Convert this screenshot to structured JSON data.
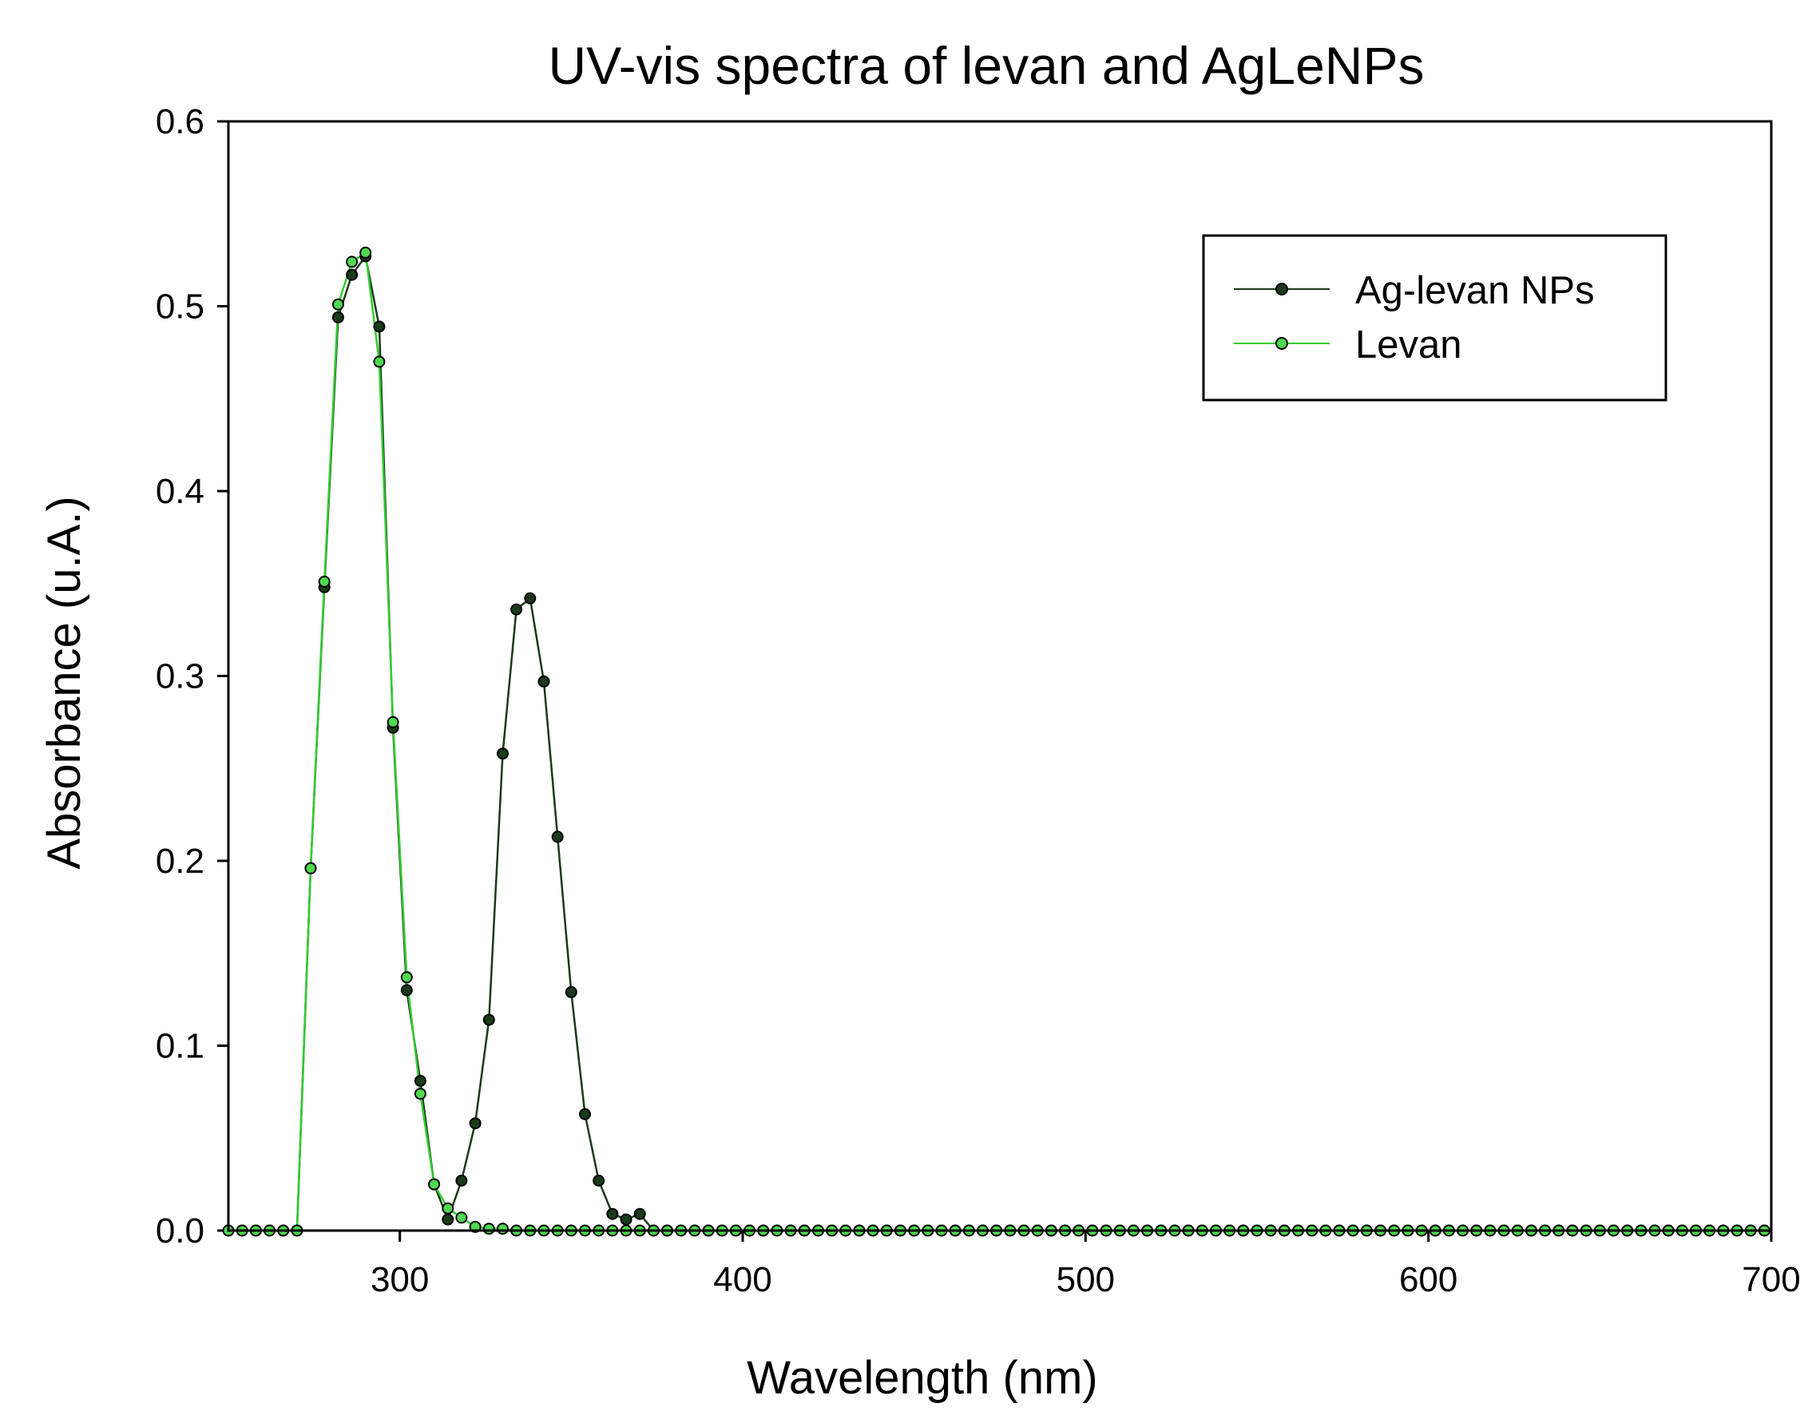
{
  "chart_data": {
    "type": "line",
    "title": "UV-vis spectra of levan and AgLeNPs",
    "xlabel": "Wavelength (nm)",
    "ylabel": "Absorbance (u.A.)",
    "xlim": [
      250,
      700
    ],
    "ylim": [
      0,
      0.6
    ],
    "xticks": [
      300,
      400,
      500,
      600,
      700
    ],
    "xtick_labels": [
      "300",
      "400",
      "500",
      "600",
      "700"
    ],
    "yticks": [
      0.0,
      0.1,
      0.2,
      0.3,
      0.4,
      0.5,
      0.6
    ],
    "ytick_labels": [
      "0.0",
      "0.1",
      "0.2",
      "0.3",
      "0.4",
      "0.5",
      "0.6"
    ],
    "grid": false,
    "legend_position": "top-right",
    "series": [
      {
        "name": "Ag-levan NPs",
        "color": "#1a3a1a",
        "marker_fill": "#1a3a1a",
        "points": [
          [
            250,
            0
          ],
          [
            254,
            0
          ],
          [
            258,
            0
          ],
          [
            262,
            0
          ],
          [
            266,
            0
          ],
          [
            270,
            0
          ],
          [
            274,
            0.196
          ],
          [
            278,
            0.348
          ],
          [
            282,
            0.494
          ],
          [
            286,
            0.517
          ],
          [
            290,
            0.527
          ],
          [
            294,
            0.489
          ],
          [
            298,
            0.272
          ],
          [
            302,
            0.13
          ],
          [
            306,
            0.081
          ],
          [
            310,
            0.025
          ],
          [
            314,
            0.006
          ],
          [
            318,
            0.027
          ],
          [
            322,
            0.058
          ],
          [
            326,
            0.114
          ],
          [
            330,
            0.258
          ],
          [
            334,
            0.336
          ],
          [
            338,
            0.342
          ],
          [
            342,
            0.297
          ],
          [
            346,
            0.213
          ],
          [
            350,
            0.129
          ],
          [
            354,
            0.063
          ],
          [
            358,
            0.027
          ],
          [
            362,
            0.009
          ],
          [
            366,
            0.006
          ],
          [
            370,
            0.009
          ],
          [
            374,
            0
          ],
          [
            378,
            0
          ],
          [
            382,
            0
          ],
          [
            386,
            0
          ],
          [
            390,
            0
          ],
          [
            394,
            0
          ],
          [
            398,
            0
          ],
          [
            402,
            0
          ],
          [
            406,
            0
          ],
          [
            410,
            0
          ],
          [
            414,
            0
          ],
          [
            418,
            0
          ],
          [
            422,
            0
          ],
          [
            426,
            0
          ],
          [
            430,
            0
          ],
          [
            434,
            0
          ],
          [
            438,
            0
          ],
          [
            442,
            0
          ],
          [
            446,
            0
          ],
          [
            450,
            0
          ],
          [
            454,
            0
          ],
          [
            458,
            0
          ],
          [
            462,
            0
          ],
          [
            466,
            0
          ],
          [
            470,
            0
          ],
          [
            474,
            0
          ],
          [
            478,
            0
          ],
          [
            482,
            0
          ],
          [
            486,
            0
          ],
          [
            490,
            0
          ],
          [
            494,
            0
          ],
          [
            498,
            0
          ],
          [
            502,
            0
          ],
          [
            506,
            0
          ],
          [
            510,
            0
          ],
          [
            514,
            0
          ],
          [
            518,
            0
          ],
          [
            522,
            0
          ],
          [
            526,
            0
          ],
          [
            530,
            0
          ],
          [
            534,
            0
          ],
          [
            538,
            0
          ],
          [
            542,
            0
          ],
          [
            546,
            0
          ],
          [
            550,
            0
          ],
          [
            554,
            0
          ],
          [
            558,
            0
          ],
          [
            562,
            0
          ],
          [
            566,
            0
          ],
          [
            570,
            0
          ],
          [
            574,
            0
          ],
          [
            578,
            0
          ],
          [
            582,
            0
          ],
          [
            586,
            0
          ],
          [
            590,
            0
          ],
          [
            594,
            0
          ],
          [
            598,
            0
          ],
          [
            602,
            0
          ],
          [
            606,
            0
          ],
          [
            610,
            0
          ],
          [
            614,
            0
          ],
          [
            618,
            0
          ],
          [
            622,
            0
          ],
          [
            626,
            0
          ],
          [
            630,
            0
          ],
          [
            634,
            0
          ],
          [
            638,
            0
          ],
          [
            642,
            0
          ],
          [
            646,
            0
          ],
          [
            650,
            0
          ],
          [
            654,
            0
          ],
          [
            658,
            0
          ],
          [
            662,
            0
          ],
          [
            666,
            0
          ],
          [
            670,
            0
          ],
          [
            674,
            0
          ],
          [
            678,
            0
          ],
          [
            682,
            0
          ],
          [
            686,
            0
          ],
          [
            690,
            0
          ],
          [
            694,
            0
          ],
          [
            698,
            0
          ]
        ]
      },
      {
        "name": "Levan",
        "color": "#33cc33",
        "marker_fill": "#4fd94f",
        "points": [
          [
            250,
            0
          ],
          [
            254,
            0
          ],
          [
            258,
            0
          ],
          [
            262,
            0
          ],
          [
            266,
            0
          ],
          [
            270,
            0
          ],
          [
            274,
            0.196
          ],
          [
            278,
            0.351
          ],
          [
            282,
            0.501
          ],
          [
            286,
            0.524
          ],
          [
            290,
            0.529
          ],
          [
            294,
            0.47
          ],
          [
            298,
            0.275
          ],
          [
            302,
            0.137
          ],
          [
            306,
            0.074
          ],
          [
            310,
            0.025
          ],
          [
            314,
            0.012
          ],
          [
            318,
            0.007
          ],
          [
            322,
            0.002
          ],
          [
            326,
            0.001
          ],
          [
            330,
            0.001
          ],
          [
            334,
            0
          ],
          [
            338,
            0
          ],
          [
            342,
            0
          ],
          [
            346,
            0
          ],
          [
            350,
            0
          ],
          [
            354,
            0
          ],
          [
            358,
            0
          ],
          [
            362,
            0
          ],
          [
            366,
            0
          ],
          [
            370,
            0
          ],
          [
            374,
            0
          ],
          [
            378,
            0
          ],
          [
            382,
            0
          ],
          [
            386,
            0
          ],
          [
            390,
            0
          ],
          [
            394,
            0
          ],
          [
            398,
            0
          ],
          [
            402,
            0
          ],
          [
            406,
            0
          ],
          [
            410,
            0
          ],
          [
            414,
            0
          ],
          [
            418,
            0
          ],
          [
            422,
            0
          ],
          [
            426,
            0
          ],
          [
            430,
            0
          ],
          [
            434,
            0
          ],
          [
            438,
            0
          ],
          [
            442,
            0
          ],
          [
            446,
            0
          ],
          [
            450,
            0
          ],
          [
            454,
            0
          ],
          [
            458,
            0
          ],
          [
            462,
            0
          ],
          [
            466,
            0
          ],
          [
            470,
            0
          ],
          [
            474,
            0
          ],
          [
            478,
            0
          ],
          [
            482,
            0
          ],
          [
            486,
            0
          ],
          [
            490,
            0
          ],
          [
            494,
            0
          ],
          [
            498,
            0
          ],
          [
            502,
            0
          ],
          [
            506,
            0
          ],
          [
            510,
            0
          ],
          [
            514,
            0
          ],
          [
            518,
            0
          ],
          [
            522,
            0
          ],
          [
            526,
            0
          ],
          [
            530,
            0
          ],
          [
            534,
            0
          ],
          [
            538,
            0
          ],
          [
            542,
            0
          ],
          [
            546,
            0
          ],
          [
            550,
            0
          ],
          [
            554,
            0
          ],
          [
            558,
            0
          ],
          [
            562,
            0
          ],
          [
            566,
            0
          ],
          [
            570,
            0
          ],
          [
            574,
            0
          ],
          [
            578,
            0
          ],
          [
            582,
            0
          ],
          [
            586,
            0
          ],
          [
            590,
            0
          ],
          [
            594,
            0
          ],
          [
            598,
            0
          ],
          [
            602,
            0
          ],
          [
            606,
            0
          ],
          [
            610,
            0
          ],
          [
            614,
            0
          ],
          [
            618,
            0
          ],
          [
            622,
            0
          ],
          [
            626,
            0
          ],
          [
            630,
            0
          ],
          [
            634,
            0
          ],
          [
            638,
            0
          ],
          [
            642,
            0
          ],
          [
            646,
            0
          ],
          [
            650,
            0
          ],
          [
            654,
            0
          ],
          [
            658,
            0
          ],
          [
            662,
            0
          ],
          [
            666,
            0
          ],
          [
            670,
            0
          ],
          [
            674,
            0
          ],
          [
            678,
            0
          ],
          [
            682,
            0
          ],
          [
            686,
            0
          ],
          [
            690,
            0
          ],
          [
            694,
            0
          ],
          [
            698,
            0
          ]
        ]
      }
    ]
  }
}
